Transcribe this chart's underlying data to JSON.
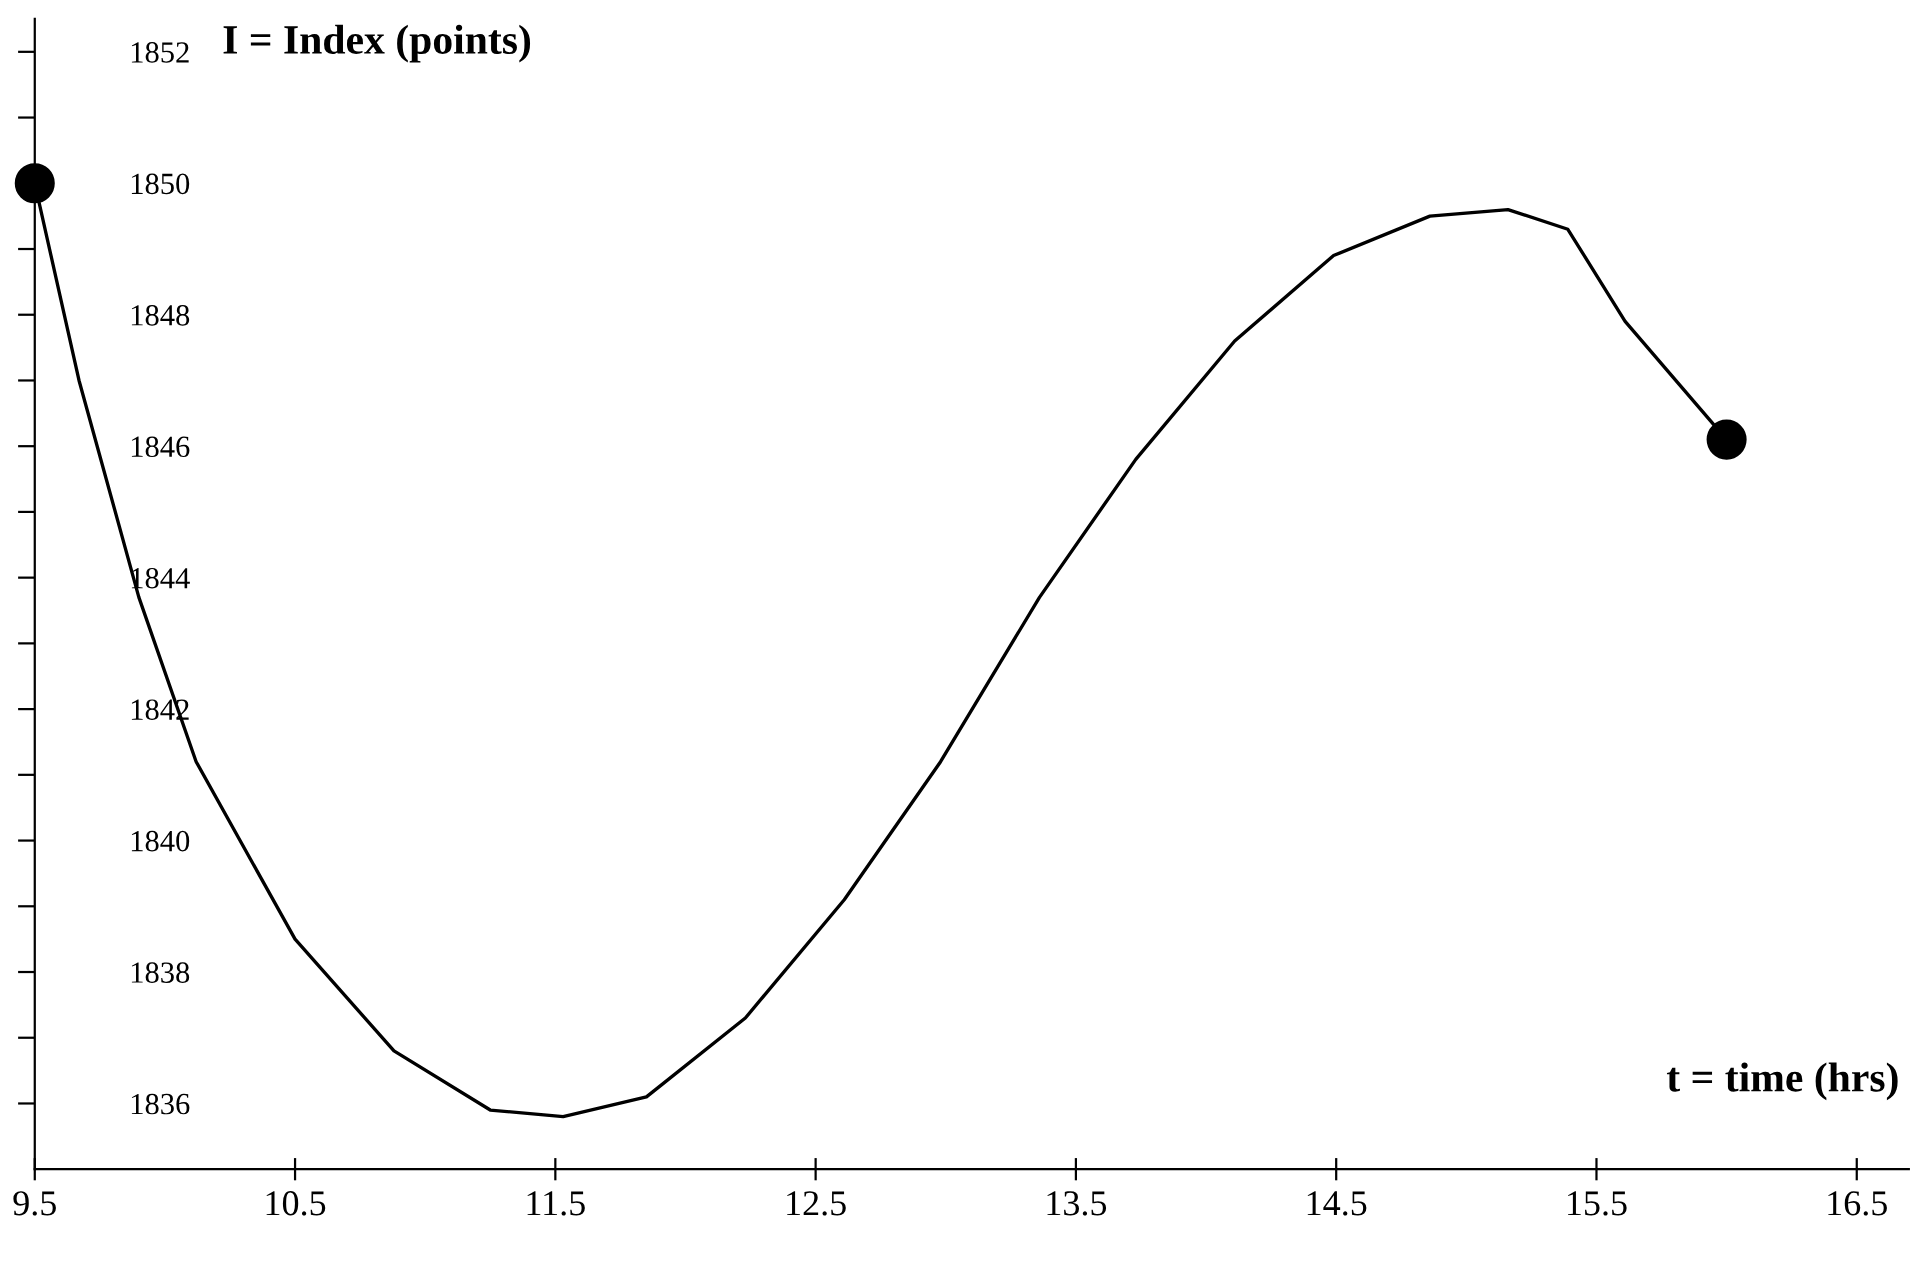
{
  "chart_data": {
    "type": "line",
    "xlabel": "t = time (hrs)",
    "ylabel": "I = Index (points)",
    "series": [
      {
        "color": "#000000",
        "x": [
          9.5,
          9.67,
          9.9,
          10.12,
          10.5,
          10.88,
          11.25,
          11.53,
          11.85,
          12.23,
          12.61,
          12.98,
          13.36,
          13.73,
          14.11,
          14.49,
          14.86,
          15.16,
          15.39,
          15.61,
          16.0
        ],
        "values": [
          1850,
          1847.0,
          1843.7,
          1841.2,
          1838.5,
          1836.8,
          1835.9,
          1835.8,
          1836.1,
          1837.3,
          1839.1,
          1841.2,
          1843.7,
          1845.8,
          1847.6,
          1848.9,
          1849.5,
          1849.6,
          1849.3,
          1847.9,
          1846.1
        ]
      },
      {
        "type": "scatter",
        "color": "#000000",
        "marker": "circle",
        "x": [
          9.5,
          16.0
        ],
        "values": [
          1850,
          1846.1
        ]
      }
    ],
    "xlim": [
      9.5,
      16.7
    ],
    "ylim": [
      1835,
      1852.5
    ],
    "xticks": [
      9.5,
      10.5,
      11.5,
      12.5,
      13.5,
      14.5,
      15.5,
      16.5
    ],
    "yticks": [
      1836,
      {
        "value": 1837,
        "label": null
      },
      1838,
      {
        "value": 1839,
        "label": null
      },
      1840,
      {
        "value": 1841,
        "label": null
      },
      1842,
      {
        "value": 1843,
        "label": null
      },
      1844,
      {
        "value": 1845,
        "label": null
      },
      1846,
      {
        "value": 1847,
        "label": null
      },
      1848,
      {
        "value": 1849,
        "label": null
      },
      1850,
      {
        "value": 1851,
        "label": null
      },
      1852
    ],
    "grid": false,
    "legend": false
  }
}
